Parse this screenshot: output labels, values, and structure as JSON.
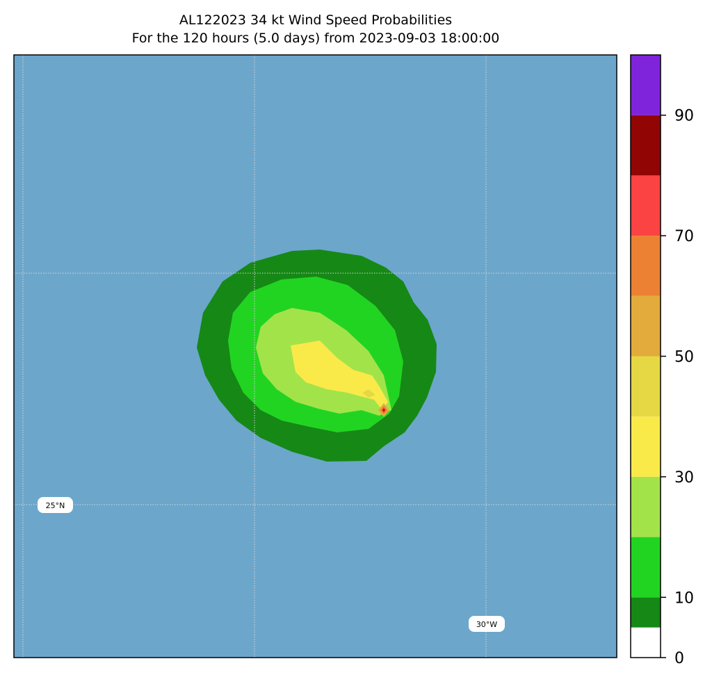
{
  "title": {
    "line1": "AL122023 34 kt Wind Speed Probabilities",
    "line2": "For the 120 hours (5.0 days) from 2023-09-03 18:00:00"
  },
  "map": {
    "ocean_color": "#6ca6cb",
    "gridlines": "dotted",
    "lat_label": "25°N",
    "lon_label": "30°W"
  },
  "probability_bands": [
    {
      "label": "5-10%",
      "color": "#168816"
    },
    {
      "label": "10-20%",
      "color": "#22d422"
    },
    {
      "label": "20-30%",
      "color": "#a3e34a"
    },
    {
      "label": "30-40%",
      "color": "#f9ea49"
    },
    {
      "label": "40-50%",
      "color": "#e5d844"
    },
    {
      "label": "50-60%",
      "color": "#e3ab3b"
    },
    {
      "label": "60-70%",
      "color": "#ed8133"
    },
    {
      "label": "70-80%",
      "color": "#fb4343"
    },
    {
      "label": "80-90%",
      "color": "#920505"
    },
    {
      "label": "90-100%",
      "color": "#8024dc"
    }
  ],
  "colorbar": {
    "range": [
      0,
      100
    ],
    "levels": [
      0,
      5,
      10,
      20,
      30,
      40,
      50,
      60,
      70,
      80,
      90,
      100
    ],
    "colors": [
      "#ffffff",
      "#168816",
      "#22d422",
      "#a3e34a",
      "#f9ea49",
      "#e5d844",
      "#e3ab3b",
      "#ed8133",
      "#fb4343",
      "#920505",
      "#8024dc"
    ],
    "tick_values": [
      0,
      10,
      30,
      50,
      70,
      90
    ],
    "tick_labels": [
      "0",
      "10",
      "30",
      "50",
      "70",
      "90"
    ]
  }
}
